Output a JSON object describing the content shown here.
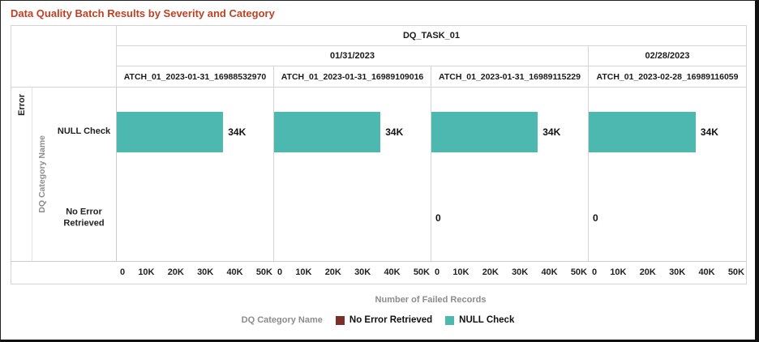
{
  "window": {
    "title": "Data Quality Batch Results by Severity and Category"
  },
  "colors": {
    "title_accent": "#bf4023",
    "bar_teal": "#4db8b0",
    "legend_maroon": "#7c2f26",
    "grid_line": "#d4d4d4"
  },
  "grid": {
    "task_header": "DQ_TASK_01",
    "date_groups": [
      {
        "label": "01/31/2023",
        "span": 3
      },
      {
        "label": "02/28/2023",
        "span": 1
      }
    ],
    "severity_label": "Error",
    "category_axis_label": "DQ Category Name",
    "row_labels": [
      "NULL Check",
      "No Error Retrieved"
    ]
  },
  "chart_data": {
    "type": "bar",
    "orientation": "horizontal",
    "title": "Data Quality Batch Results by Severity and Category",
    "xlabel": "Number of Failed Records",
    "ylabel": "DQ Category Name",
    "xlim": [
      0,
      50000
    ],
    "x_ticks": [
      "0",
      "10K",
      "20K",
      "30K",
      "40K",
      "50K"
    ],
    "categories": [
      "NULL Check",
      "No Error Retrieved"
    ],
    "bar_colors": {
      "NULL Check": "#4db8b0",
      "No Error Retrieved": "#7c2f26"
    },
    "panels": [
      {
        "task": "DQ_TASK_01",
        "date": "01/31/2023",
        "batch": "ATCH_01_2023-01-31_16988532970",
        "values": {
          "NULL Check": 34000,
          "No Error Retrieved": null
        },
        "labels": {
          "NULL Check": "34K",
          "No Error Retrieved": ""
        }
      },
      {
        "task": "DQ_TASK_01",
        "date": "01/31/2023",
        "batch": "ATCH_01_2023-01-31_16989109016",
        "values": {
          "NULL Check": 34000,
          "No Error Retrieved": null
        },
        "labels": {
          "NULL Check": "34K",
          "No Error Retrieved": ""
        }
      },
      {
        "task": "DQ_TASK_01",
        "date": "01/31/2023",
        "batch": "ATCH_01_2023-01-31_16989115229",
        "values": {
          "NULL Check": 34000,
          "No Error Retrieved": 0
        },
        "labels": {
          "NULL Check": "34K",
          "No Error Retrieved": "0"
        }
      },
      {
        "task": "DQ_TASK_01",
        "date": "02/28/2023",
        "batch": "ATCH_01_2023-02-28_16989116059",
        "values": {
          "NULL Check": 34000,
          "No Error Retrieved": 0
        },
        "labels": {
          "NULL Check": "34K",
          "No Error Retrieved": "0"
        }
      }
    ]
  },
  "axis": {
    "x_title": "Number of Failed Records"
  },
  "legend": {
    "title": "DQ Category Name",
    "items": [
      {
        "label": "No Error Retrieved",
        "color": "#7c2f26"
      },
      {
        "label": "NULL Check",
        "color": "#4db8b0"
      }
    ]
  }
}
